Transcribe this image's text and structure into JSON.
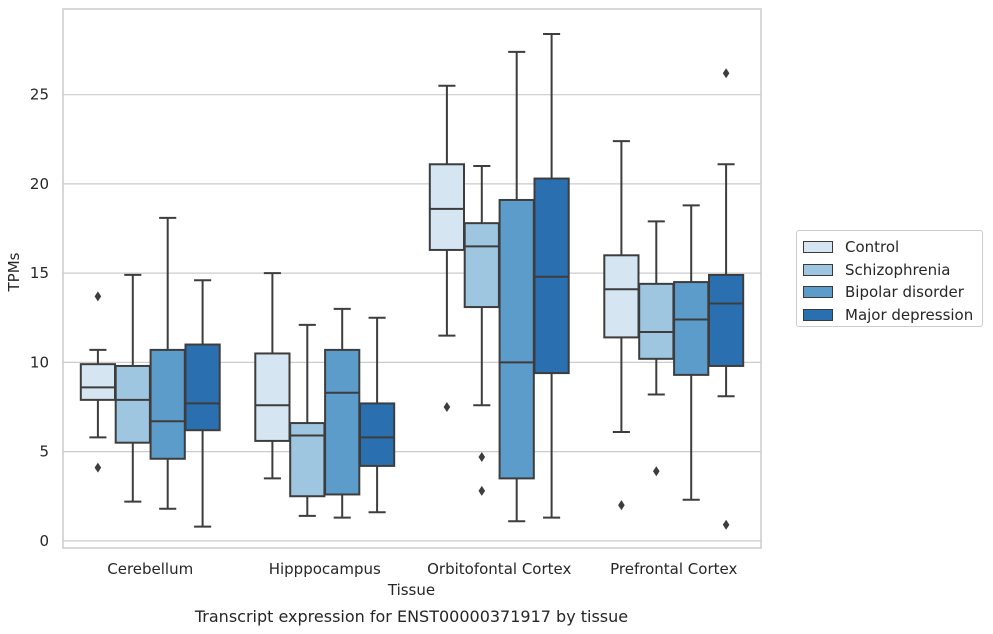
{
  "chart_data": {
    "type": "box",
    "title": "",
    "caption": "Transcript expression for ENST00000371917 by tissue",
    "xlabel": "Tissue",
    "ylabel": "TPMs",
    "ylim": [
      -0.4,
      29.8
    ],
    "yticks": [
      0,
      5,
      10,
      15,
      20,
      25
    ],
    "grid": "horizontal",
    "legend_position": "right",
    "categories": [
      "Cerebellum",
      "Hipppocampus",
      "Orbitofontal Cortex",
      "Prefrontal Cortex"
    ],
    "series": [
      {
        "name": "Control",
        "color": "#d6e5f2",
        "boxes": [
          {
            "whislo": 5.8,
            "q1": 7.9,
            "med": 8.6,
            "q3": 9.9,
            "whishi": 10.7,
            "fliers": [
              13.7,
              4.1
            ]
          },
          {
            "whislo": 3.5,
            "q1": 5.6,
            "med": 7.6,
            "q3": 10.5,
            "whishi": 15.0,
            "fliers": []
          },
          {
            "whislo": 11.5,
            "q1": 16.3,
            "med": 18.6,
            "q3": 21.1,
            "whishi": 25.5,
            "fliers": [
              7.5
            ]
          },
          {
            "whislo": 6.1,
            "q1": 11.4,
            "med": 14.1,
            "q3": 16.0,
            "whishi": 22.4,
            "fliers": [
              2.0
            ]
          }
        ]
      },
      {
        "name": "Schizophrenia",
        "color": "#9ec6e0",
        "boxes": [
          {
            "whislo": 2.2,
            "q1": 5.5,
            "med": 7.9,
            "q3": 9.8,
            "whishi": 14.9,
            "fliers": []
          },
          {
            "whislo": 1.4,
            "q1": 2.5,
            "med": 5.9,
            "q3": 6.6,
            "whishi": 12.1,
            "fliers": []
          },
          {
            "whislo": 7.6,
            "q1": 13.1,
            "med": 16.5,
            "q3": 17.8,
            "whishi": 21.0,
            "fliers": [
              4.7,
              2.8
            ]
          },
          {
            "whislo": 8.2,
            "q1": 10.2,
            "med": 11.7,
            "q3": 14.4,
            "whishi": 17.9,
            "fliers": [
              3.9
            ]
          }
        ]
      },
      {
        "name": "Bipolar disorder",
        "color": "#5c9ccb",
        "boxes": [
          {
            "whislo": 1.8,
            "q1": 4.6,
            "med": 6.7,
            "q3": 10.7,
            "whishi": 18.1,
            "fliers": []
          },
          {
            "whislo": 1.3,
            "q1": 2.6,
            "med": 8.3,
            "q3": 10.7,
            "whishi": 13.0,
            "fliers": []
          },
          {
            "whislo": 1.1,
            "q1": 3.5,
            "med": 10.0,
            "q3": 19.1,
            "whishi": 27.4,
            "fliers": []
          },
          {
            "whislo": 2.3,
            "q1": 9.3,
            "med": 12.4,
            "q3": 14.5,
            "whishi": 18.8,
            "fliers": []
          }
        ]
      },
      {
        "name": "Major depression",
        "color": "#2a70b1",
        "boxes": [
          {
            "whislo": 0.8,
            "q1": 6.2,
            "med": 7.7,
            "q3": 11.0,
            "whishi": 14.6,
            "fliers": []
          },
          {
            "whislo": 1.6,
            "q1": 4.2,
            "med": 5.8,
            "q3": 7.7,
            "whishi": 12.5,
            "fliers": []
          },
          {
            "whislo": 1.3,
            "q1": 9.4,
            "med": 14.8,
            "q3": 20.3,
            "whishi": 28.4,
            "fliers": []
          },
          {
            "whislo": 8.1,
            "q1": 9.8,
            "med": 13.3,
            "q3": 14.9,
            "whishi": 21.1,
            "fliers": [
              26.2,
              0.9
            ]
          }
        ]
      }
    ]
  }
}
